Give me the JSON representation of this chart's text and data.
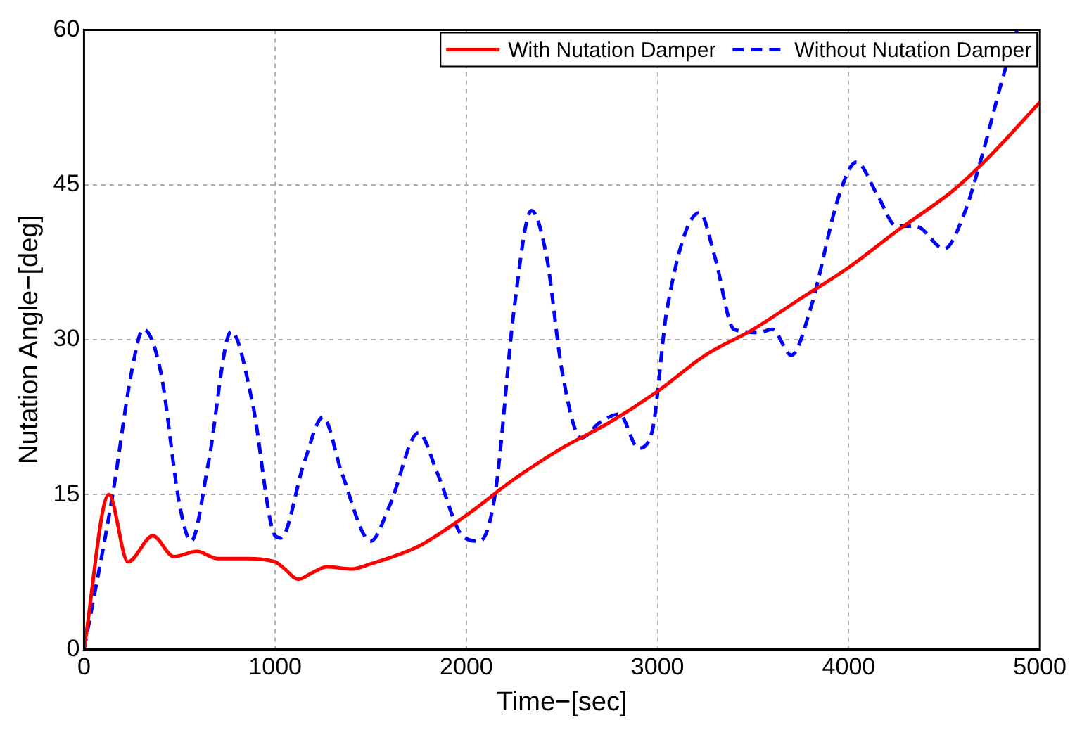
{
  "chart_data": {
    "type": "line",
    "xlabel": "Time−[sec]",
    "ylabel": "Nutation Angle−[deg]",
    "xlim": [
      0,
      5000
    ],
    "ylim": [
      0,
      60
    ],
    "xticks": [
      0,
      1000,
      2000,
      3000,
      4000,
      5000
    ],
    "yticks": [
      0,
      15,
      30,
      45,
      60
    ],
    "grid": true,
    "legend": "top right",
    "marker": "none",
    "series": [
      {
        "name": "With Nutation Damper",
        "color": "#ff0000",
        "line_style": "solid",
        "x": [
          0,
          130,
          230,
          360,
          470,
          590,
          700,
          850,
          1000,
          1050,
          1120,
          1200,
          1270,
          1400,
          1500,
          1750,
          2000,
          2250,
          2500,
          2750,
          3000,
          3250,
          3500,
          3750,
          4000,
          4250,
          4550,
          4750,
          5000
        ],
        "values": [
          0,
          15,
          8.5,
          11,
          9,
          9.5,
          8.8,
          8.8,
          8.5,
          7.8,
          6.8,
          7.5,
          8,
          7.8,
          8.3,
          10,
          13,
          16.5,
          19.5,
          22,
          25,
          28.5,
          31,
          34,
          37,
          40.5,
          44.5,
          48,
          53
        ]
      },
      {
        "name": "Without Nutation Damper",
        "color": "#0000ff",
        "line_style": "dashed",
        "x": [
          0,
          150,
          250,
          310,
          400,
          500,
          560,
          650,
          770,
          880,
          1000,
          1030,
          1150,
          1250,
          1350,
          1500,
          1600,
          1750,
          1850,
          1980,
          2070,
          2150,
          2250,
          2340,
          2420,
          2500,
          2600,
          2700,
          2800,
          2900,
          2970,
          3050,
          3220,
          3300,
          3400,
          3530,
          3600,
          3700,
          3800,
          3950,
          4040,
          4150,
          4250,
          4350,
          4500,
          4600,
          4700,
          4800,
          4880
        ],
        "values": [
          0,
          15,
          27,
          31,
          27,
          14,
          10.5,
          18,
          30.8,
          24,
          11,
          10.8,
          18,
          22.5,
          17,
          10.5,
          14,
          21,
          17,
          11,
          10.5,
          15,
          33,
          42.5,
          38,
          27,
          20.5,
          22,
          22.8,
          19.5,
          21,
          33,
          42.3,
          38,
          31,
          30.7,
          31,
          28.5,
          33,
          44,
          47.2,
          44,
          41,
          41,
          38.8,
          42,
          48,
          55,
          60
        ]
      }
    ]
  }
}
